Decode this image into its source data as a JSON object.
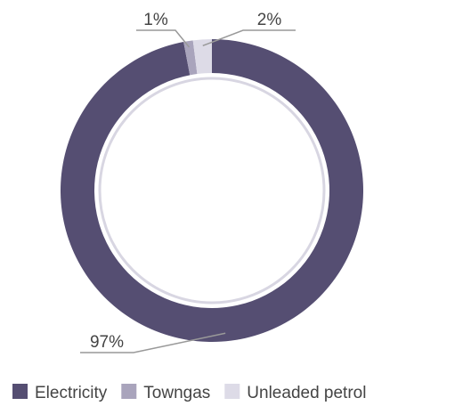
{
  "chart_data": {
    "type": "pie",
    "categories": [
      "Electricity",
      "Towngas",
      "Unleaded petrol"
    ],
    "values": [
      97,
      1,
      2
    ],
    "value_labels": [
      "97%",
      "1%",
      "2%"
    ],
    "colors": [
      "#554e72",
      "#a9a4bc",
      "#dddbe7"
    ],
    "legend": "bottom"
  }
}
